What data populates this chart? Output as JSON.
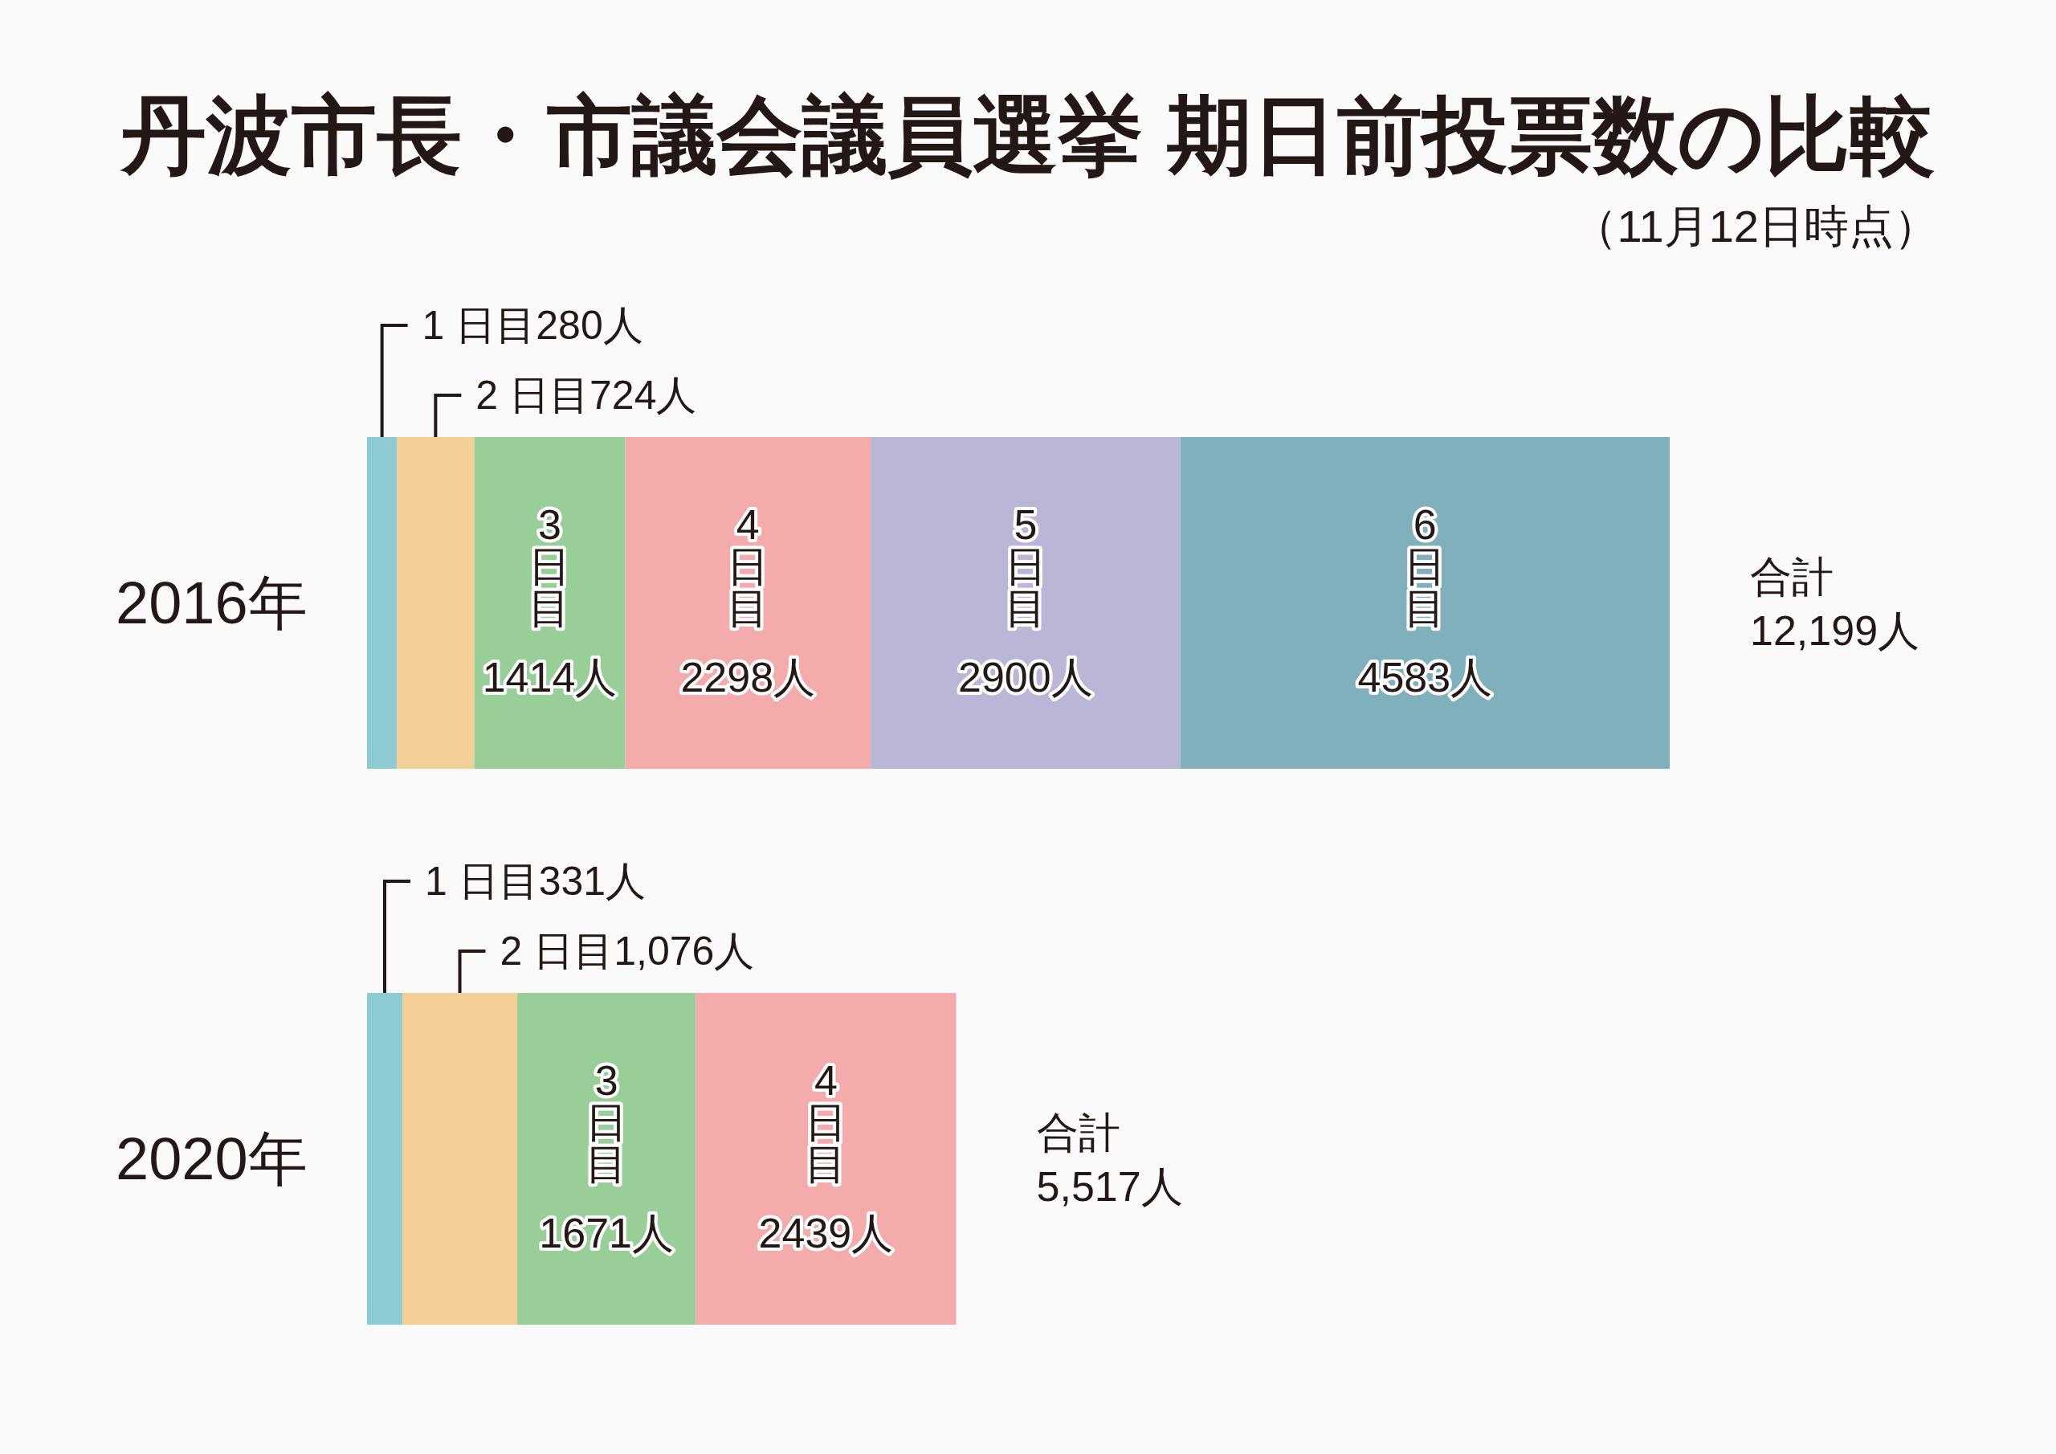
{
  "chart_data": {
    "type": "bar",
    "orientation": "horizontal",
    "stacked": true,
    "title": "丹波市長・市議会議員選挙 期日前投票数の比較",
    "subtitle": "（11月12日時点）",
    "categories": [
      "2016年",
      "2020年"
    ],
    "tick_labels": "y",
    "series": [
      {
        "name": "1 日目",
        "color": "#8dcbd3",
        "values": [
          280,
          331
        ],
        "value_labels": [
          "280人",
          "331人"
        ]
      },
      {
        "name": "2 日目",
        "color": "#f3cf98",
        "values": [
          724,
          1076
        ],
        "value_labels": [
          "724人",
          "1,076人"
        ]
      },
      {
        "name": "3日目",
        "color": "#98ce98",
        "values": [
          1414,
          1671
        ],
        "value_labels": [
          "1414人",
          "1671人"
        ]
      },
      {
        "name": "4日目",
        "color": "#f3abab",
        "values": [
          2298,
          2439
        ],
        "value_labels": [
          "2298人",
          "2439人"
        ]
      },
      {
        "name": "5日目",
        "color": "#bab6d6",
        "values": [
          2900,
          null
        ],
        "value_labels": [
          "2900人",
          null
        ]
      },
      {
        "name": "6日目",
        "color": "#80b0bc",
        "values": [
          4583,
          null
        ],
        "value_labels": [
          "4583人",
          null
        ]
      }
    ],
    "totals": [
      "合計\n12,199人",
      "合計\n5,517人"
    ]
  }
}
